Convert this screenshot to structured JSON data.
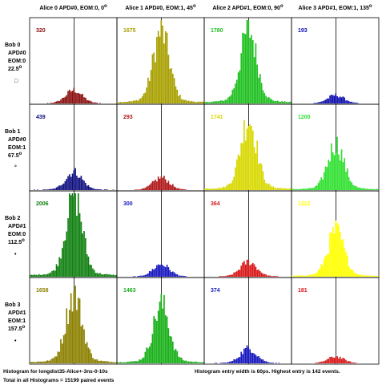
{
  "chart_data": {
    "type": "histogram-grid",
    "columns": [
      {
        "label": "Alice 0 APD#0, EOM:0, 0",
        "deg": "o"
      },
      {
        "label": "Alice 1 APD#0, EOM:1, 45",
        "deg": "o"
      },
      {
        "label": "Alice 2 APD#1, EOM:0, 90",
        "deg": "o"
      },
      {
        "label": "Alice 3 APD#1, EOM:1, 135",
        "deg": "o"
      }
    ],
    "rows": [
      {
        "lines": [
          "Bob 0",
          "APD#0",
          "EOM:0",
          "22.5"
        ],
        "deg": "o",
        "marker": "□"
      },
      {
        "lines": [
          "Bob 1",
          "APD#0",
          "EOM:1",
          "67.5"
        ],
        "deg": "o",
        "marker": "°"
      },
      {
        "lines": [
          "Bob 2",
          "APD#1",
          "EOM:0",
          "112.5"
        ],
        "deg": "o",
        "marker": "•"
      },
      {
        "lines": [
          "Bob 3",
          "APD#1",
          "EOM:1",
          "157.5"
        ],
        "deg": "o",
        "marker": "•"
      }
    ],
    "colors": {
      "red": "#b01818",
      "yellow": "#a8a000",
      "green": "#18a818",
      "blue": "#1818b0",
      "darkred": "#8b0000",
      "olive": "#8b8000",
      "darkgreen": "#108010",
      "brightyellow": "#e8e800"
    },
    "cells": [
      [
        {
          "count": "320",
          "color": "#8b1010",
          "height": 0.16
        },
        {
          "count": "1675",
          "color": "#a8a000",
          "height": 0.86
        },
        {
          "count": "1780",
          "color": "#20c020",
          "height": 0.88
        },
        {
          "count": "193",
          "color": "#1010b0",
          "height": 0.1
        }
      ],
      [
        {
          "count": "439",
          "color": "#101080",
          "height": 0.22
        },
        {
          "count": "293",
          "color": "#b01818",
          "height": 0.15
        },
        {
          "count": "1741",
          "color": "#d8d800",
          "height": 0.85
        },
        {
          "count": "1200",
          "color": "#30e030",
          "height": 0.55
        }
      ],
      [
        {
          "count": "2006",
          "color": "#108010",
          "height": 1.0
        },
        {
          "count": "300",
          "color": "#1818c0",
          "height": 0.15
        },
        {
          "count": "364",
          "color": "#d81818",
          "height": 0.18
        },
        {
          "count": "1212",
          "color": "#ffff00",
          "height": 0.55
        }
      ],
      [
        {
          "count": "1658",
          "color": "#8b8000",
          "height": 0.82
        },
        {
          "count": "1463",
          "color": "#18b018",
          "height": 0.7
        },
        {
          "count": "374",
          "color": "#1818c0",
          "height": 0.18
        },
        {
          "count": "181",
          "color": "#d81818",
          "height": 0.08
        }
      ]
    ],
    "footer": {
      "left1": "Histogram for longdist35-Alice+-3ns-0-10s",
      "left2": "Total in all Histograms = 15199 paired events",
      "right": "Histogram entry width is 60ps. Highest entry is 142 events."
    }
  }
}
